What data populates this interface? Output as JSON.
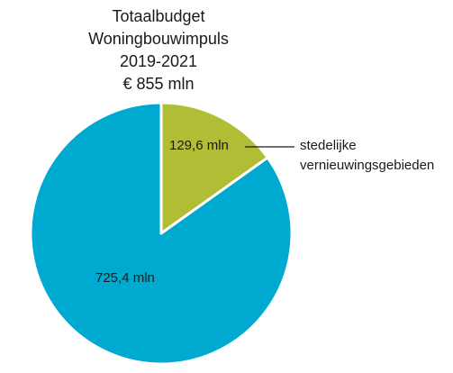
{
  "chart_data": {
    "type": "pie",
    "title_lines": [
      "Totaalbudget",
      "Woningbouwimpuls",
      "2019-2021",
      "€ 855 mln"
    ],
    "total": 855,
    "unit": "mln",
    "slices": [
      {
        "value": 129.6,
        "label": "129,6 mln",
        "color": "#b1bd35",
        "annotation": [
          "stedelijke",
          "vernieuwingsgebieden"
        ]
      },
      {
        "value": 725.4,
        "label": "725,4 mln",
        "color": "#00a9cf"
      }
    ]
  }
}
